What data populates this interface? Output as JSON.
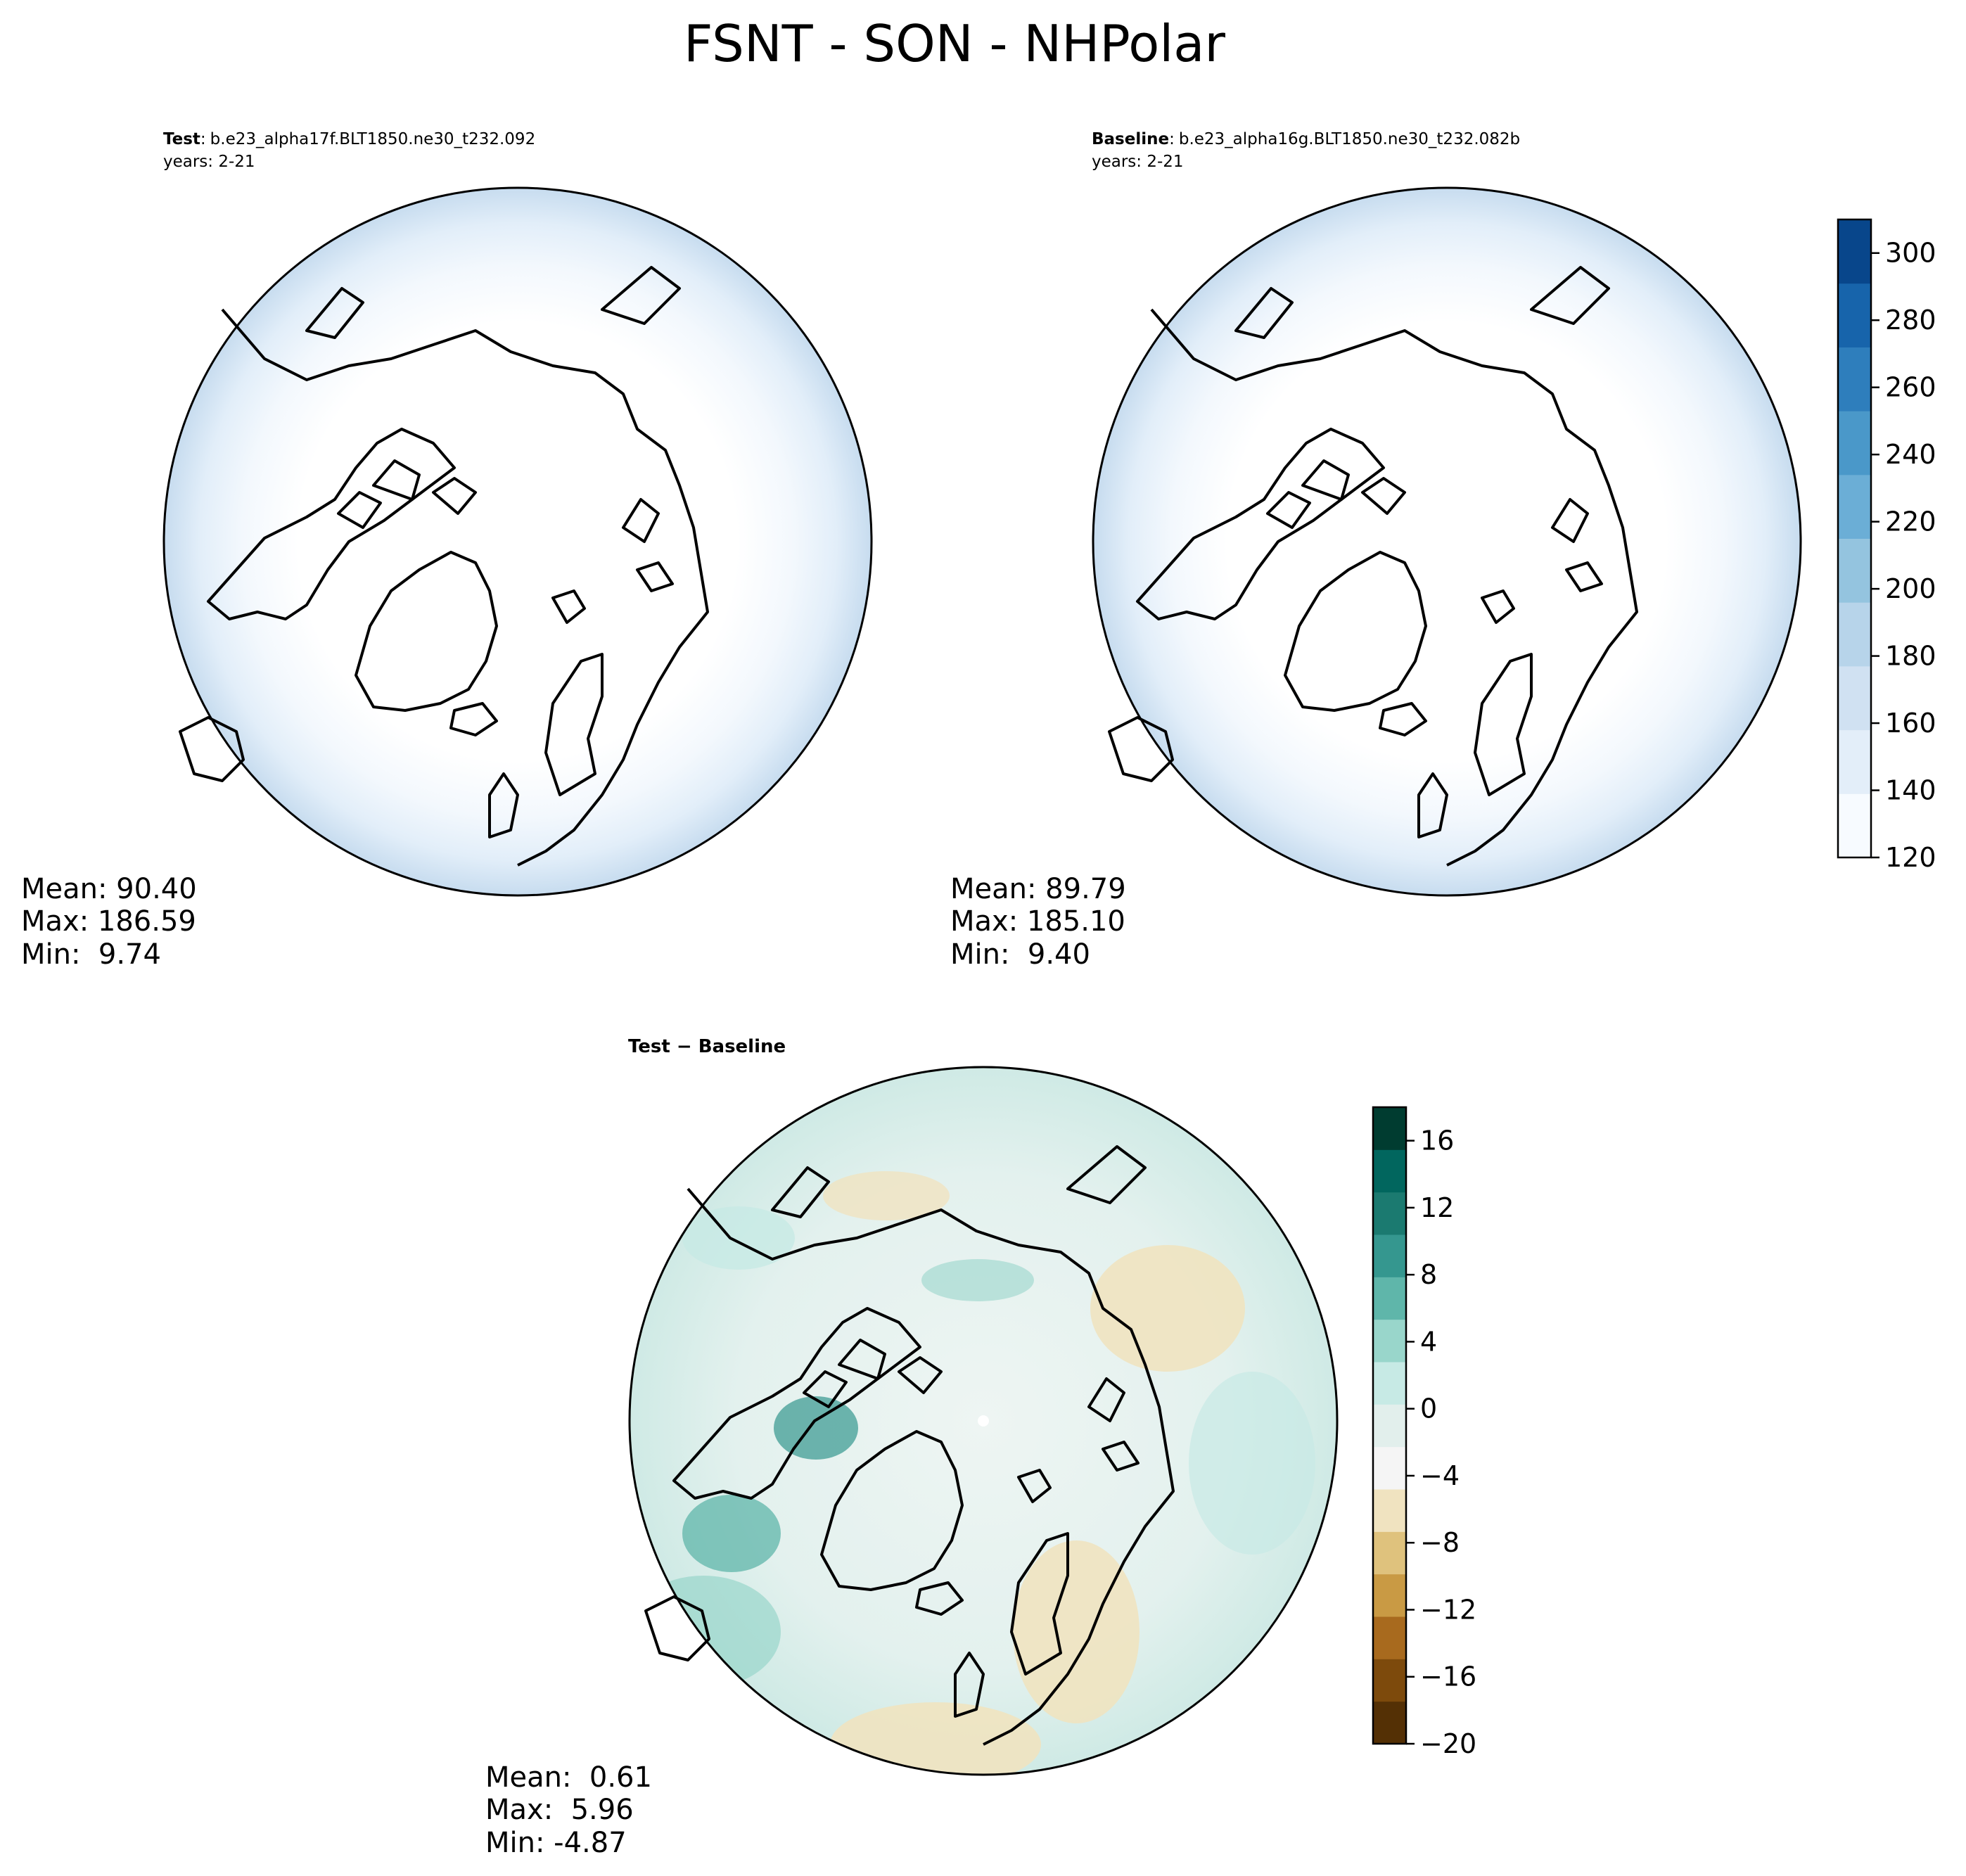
{
  "figure": {
    "title": "FSNT - SON - NHPolar"
  },
  "panels": [
    {
      "id": "test",
      "header_bold": "Test",
      "header_sep": ":",
      "header_case": "b.e23_alpha17f.BLT1850.ne30_t232.092",
      "header_years": "years: 2-21",
      "stats": [
        "Mean: 90.40",
        "Max: 186.59",
        "Min:  9.74"
      ]
    },
    {
      "id": "baseline",
      "header_bold": "Baseline",
      "header_sep": ":",
      "header_case": "b.e23_alpha16g.BLT1850.ne30_t232.082b",
      "header_years": "years: 2-21",
      "stats": [
        "Mean: 89.79",
        "Max: 185.10",
        "Min:  9.40"
      ]
    },
    {
      "id": "diff",
      "header_bold": "Test − Baseline",
      "stats": [
        "Mean:  0.61",
        "Max:  5.96",
        "Min: -4.87"
      ]
    }
  ],
  "colorbars": {
    "absolute": {
      "colormap": "Blues",
      "range": [
        120,
        310
      ],
      "ticks": [
        "120",
        "140",
        "160",
        "180",
        "200",
        "220",
        "240",
        "260",
        "280",
        "300"
      ],
      "colors": [
        "#f7fbff",
        "#e3eef9",
        "#d0e1f2",
        "#b7d4ea",
        "#94c4df",
        "#6baed6",
        "#4a98c9",
        "#2e7ebc",
        "#1764ab",
        "#08468b"
      ]
    },
    "difference": {
      "colormap": "BrBG",
      "range": [
        -20,
        18
      ],
      "ticks": [
        "−20",
        "−16",
        "−12",
        "−8",
        "−4",
        "0",
        "4",
        "8",
        "12",
        "16"
      ],
      "colors": [
        "#543005",
        "#7d4a0c",
        "#a86a1e",
        "#c99a44",
        "#dfc27d",
        "#f0e3c0",
        "#f5f5f5",
        "#e2efec",
        "#c7eae5",
        "#99d6cb",
        "#5fb6aa",
        "#35978f",
        "#1b7a70",
        "#01665e",
        "#003c30"
      ]
    }
  }
}
